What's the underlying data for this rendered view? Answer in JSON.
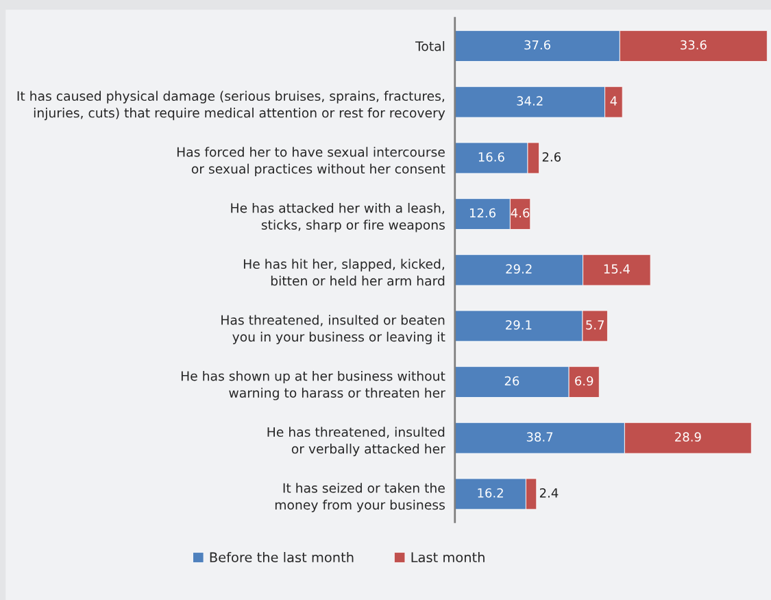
{
  "chart_data": {
    "type": "bar",
    "orientation": "horizontal",
    "stacked": true,
    "data_labels": true,
    "legend": "bottom",
    "grid": false,
    "categories": [
      "Total",
      "It has caused physical damage (serious bruises, sprains, fractures,\ninjuries, cuts) that require medical attention or rest for recovery",
      "Has forced her to have sexual intercourse\nor sexual practices without her consent",
      "He has attacked her with a leash,\nsticks, sharp or fire weapons",
      "He has hit her, slapped, kicked,\nbitten or held her arm hard",
      "Has threatened, insulted or beaten\nyou in your business or leaving it",
      "He has shown up at her business without\nwarning to harass or threaten her",
      "He has threatened, insulted\nor verbally attacked her",
      "It has seized or taken the\nmoney from your business"
    ],
    "series": [
      {
        "name": "Before the last month",
        "color": "#4f81bd",
        "values": [
          37.6,
          34.2,
          16.6,
          12.6,
          29.2,
          29.1,
          26,
          38.7,
          16.2
        ]
      },
      {
        "name": "Last month",
        "color": "#c0504d",
        "values": [
          33.6,
          4,
          2.6,
          4.6,
          15.4,
          5.7,
          6.9,
          28.9,
          2.4
        ]
      }
    ]
  }
}
